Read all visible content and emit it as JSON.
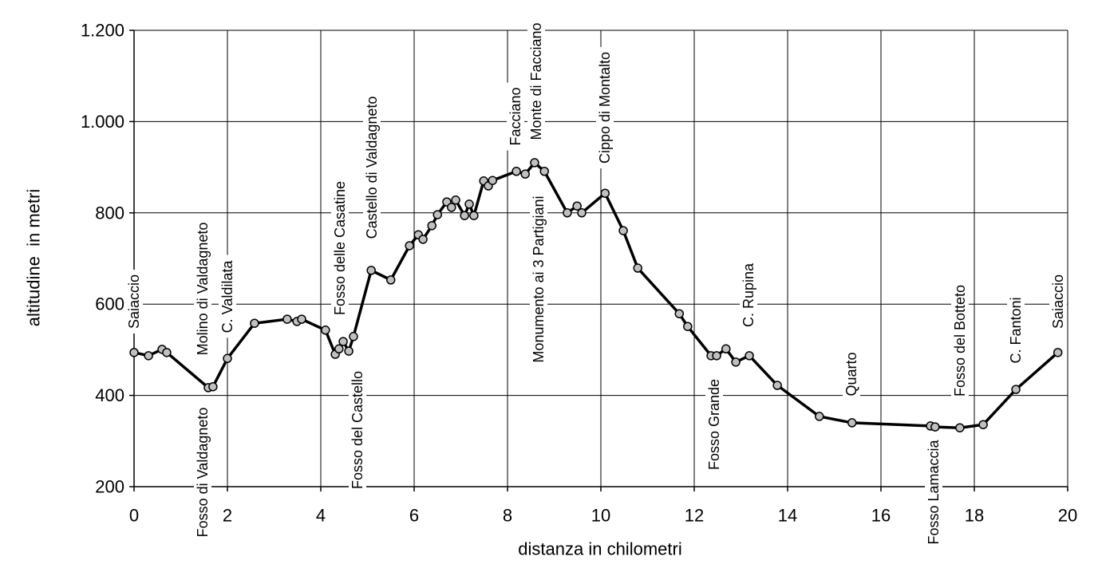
{
  "chart_data": {
    "type": "line",
    "xlabel": "distanza in chilometri",
    "ylabel": "altitudine  in metri",
    "x": [
      0,
      0.31,
      0.6,
      0.7,
      1.59,
      1.69,
      2.0,
      2.58,
      3.28,
      3.49,
      3.59,
      4.1,
      4.31,
      4.39,
      4.48,
      4.6,
      4.7,
      5.08,
      5.5,
      5.9,
      6.09,
      6.19,
      6.38,
      6.5,
      6.7,
      6.8,
      6.89,
      7.08,
      7.18,
      7.28,
      7.49,
      7.59,
      7.68,
      8.19,
      8.38,
      8.58,
      8.79,
      9.28,
      9.49,
      9.59,
      10.09,
      10.48,
      10.79,
      11.68,
      11.86,
      12.36,
      12.48,
      12.68,
      12.89,
      13.18,
      13.78,
      14.68,
      15.38,
      17.06,
      17.16,
      17.69,
      18.19,
      18.89,
      19.79
    ],
    "series": [
      {
        "name": "altitudine",
        "color": "#000000",
        "marker_color": "#c0c0c0",
        "values": [
          494,
          487,
          501,
          494,
          417,
          419,
          481,
          558,
          567,
          562,
          567,
          543,
          490,
          502,
          518,
          497,
          529,
          674,
          653,
          728,
          752,
          742,
          772,
          796,
          824,
          812,
          828,
          794,
          819,
          794,
          870,
          859,
          871,
          891,
          885,
          910,
          891,
          800,
          815,
          800,
          843,
          761,
          679,
          579,
          551,
          487,
          487,
          502,
          473,
          487,
          422,
          354,
          340,
          333,
          331,
          329,
          336,
          413,
          494
        ]
      }
    ],
    "xlim": [
      0,
      20
    ],
    "xticks": [
      0,
      2,
      4,
      6,
      8,
      10,
      12,
      14,
      16,
      18,
      20
    ],
    "ylim": [
      200,
      1200
    ],
    "yticks": [
      200,
      400,
      600,
      800,
      {
        "value": 1000,
        "label": "1.000"
      },
      {
        "value": 1200,
        "label": "1.200"
      }
    ],
    "grid": true,
    "annotations": [
      "Saiaccio",
      "Molino di Valdagneto",
      "C. Valdilata",
      "Fosso di Valdagneto",
      "Fosso delle Casatine",
      "Castello di Valdagneto",
      "Fosso del Castello",
      "Facciano",
      "Monte di Facciano",
      "Monumento ai 3 Partigiani",
      "Cippo di Montalto",
      "Fosso Grande",
      "C. Rupina",
      "Quarto",
      "Fosso Lamaccia",
      "Fosso del Botteto",
      "C. Fantoni",
      "Saiaccio"
    ]
  }
}
